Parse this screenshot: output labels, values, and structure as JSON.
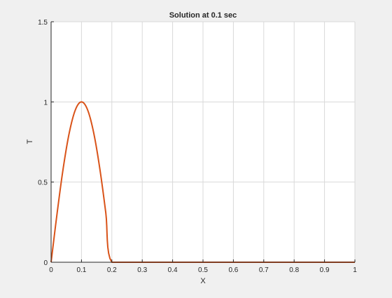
{
  "chart_data": {
    "type": "line",
    "title": "Solution at 0.1 sec",
    "xlabel": "X",
    "ylabel": "T",
    "xlim": [
      0,
      1
    ],
    "ylim": [
      0,
      1.5
    ],
    "xticks": [
      0,
      0.1,
      0.2,
      0.3,
      0.4,
      0.5,
      0.6,
      0.7,
      0.8,
      0.9,
      1
    ],
    "xtick_labels": [
      "0",
      "0.1",
      "0.2",
      "0.3",
      "0.4",
      "0.5",
      "0.6",
      "0.7",
      "0.8",
      "0.9",
      "1"
    ],
    "yticks": [
      0,
      0.5,
      1,
      1.5
    ],
    "ytick_labels": [
      "0",
      "0.5",
      "1",
      "1.5"
    ],
    "grid": true,
    "series": [
      {
        "color": "#d95319",
        "x": [
          0,
          0.02,
          0.04,
          0.06,
          0.08,
          0.1,
          0.12,
          0.14,
          0.16,
          0.18,
          0.2,
          0.3,
          0.4,
          0.5,
          0.6,
          0.7,
          0.8,
          0.9,
          1
        ],
        "y": [
          0,
          0.309,
          0.588,
          0.809,
          0.951,
          1.0,
          0.951,
          0.809,
          0.588,
          0.309,
          0,
          0,
          0,
          0,
          0,
          0,
          0,
          0,
          0
        ]
      }
    ]
  },
  "colors": {
    "figure_background": "#f0f0f0",
    "axes_background": "#ffffff",
    "grid": "#d9d9d9",
    "axis": "#262626"
  }
}
